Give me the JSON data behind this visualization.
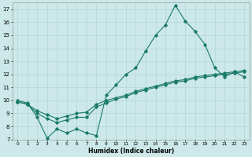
{
  "title": "",
  "xlabel": "Humidex (Indice chaleur)",
  "bg_color": "#cce8e8",
  "grid_color": "#b8d8d8",
  "line_color": "#1a7a6a",
  "xlim": [
    -0.5,
    23.5
  ],
  "ylim": [
    7,
    17.5
  ],
  "xticks": [
    0,
    1,
    2,
    3,
    4,
    5,
    6,
    7,
    8,
    9,
    10,
    11,
    12,
    13,
    14,
    15,
    16,
    17,
    18,
    19,
    20,
    21,
    22,
    23
  ],
  "yticks": [
    7,
    8,
    9,
    10,
    11,
    12,
    13,
    14,
    15,
    16,
    17
  ],
  "series1_x": [
    0,
    1,
    2,
    3,
    4,
    5,
    6,
    7,
    8,
    9,
    10,
    11,
    12,
    13,
    14,
    15,
    16,
    17,
    18,
    19,
    20,
    21,
    22,
    23
  ],
  "series1_y": [
    10.0,
    9.8,
    8.7,
    7.1,
    7.8,
    7.5,
    7.8,
    7.5,
    7.3,
    10.4,
    11.2,
    12.0,
    12.5,
    13.8,
    15.0,
    15.8,
    17.3,
    16.1,
    15.3,
    14.3,
    12.5,
    11.8,
    12.2,
    11.8
  ],
  "series2_x": [
    0,
    1,
    2,
    3,
    4,
    5,
    6,
    7,
    8,
    9,
    10,
    11,
    12,
    13,
    14,
    15,
    16,
    17,
    18,
    19,
    20,
    21,
    22,
    23
  ],
  "series2_y": [
    9.9,
    9.7,
    9.0,
    8.6,
    8.3,
    8.5,
    8.7,
    8.7,
    9.5,
    9.8,
    10.1,
    10.3,
    10.6,
    10.8,
    11.0,
    11.2,
    11.4,
    11.5,
    11.7,
    11.8,
    11.9,
    12.0,
    12.1,
    12.2
  ],
  "series3_x": [
    0,
    1,
    2,
    3,
    4,
    5,
    6,
    7,
    8,
    9,
    10,
    11,
    12,
    13,
    14,
    15,
    16,
    17,
    18,
    19,
    20,
    21,
    22,
    23
  ],
  "series3_y": [
    9.9,
    9.7,
    9.2,
    8.9,
    8.6,
    8.8,
    9.0,
    9.1,
    9.7,
    10.0,
    10.2,
    10.4,
    10.7,
    10.9,
    11.1,
    11.3,
    11.5,
    11.6,
    11.8,
    11.9,
    12.0,
    12.1,
    12.2,
    12.3
  ]
}
